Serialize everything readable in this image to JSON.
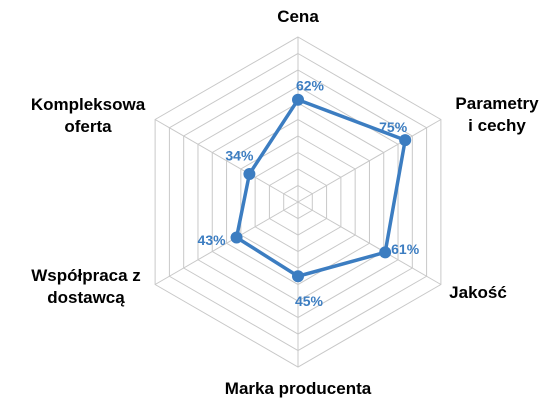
{
  "chart_data": {
    "type": "radar",
    "categories": [
      [
        "Cena"
      ],
      [
        "Parametry",
        "i cechy"
      ],
      [
        "Jakość"
      ],
      [
        "Marka producenta"
      ],
      [
        "Współpraca z",
        "dostawcą"
      ],
      [
        "Kompleksowa",
        "oferta"
      ]
    ],
    "values": [
      62,
      75,
      61,
      45,
      43,
      34
    ],
    "data_labels": [
      "62%",
      "75%",
      "61%",
      "45%",
      "43%",
      "34%"
    ],
    "range": [
      0,
      100
    ],
    "grid": true,
    "series_color": "#3c7dc1",
    "grid_color": "#c8c8c8"
  }
}
